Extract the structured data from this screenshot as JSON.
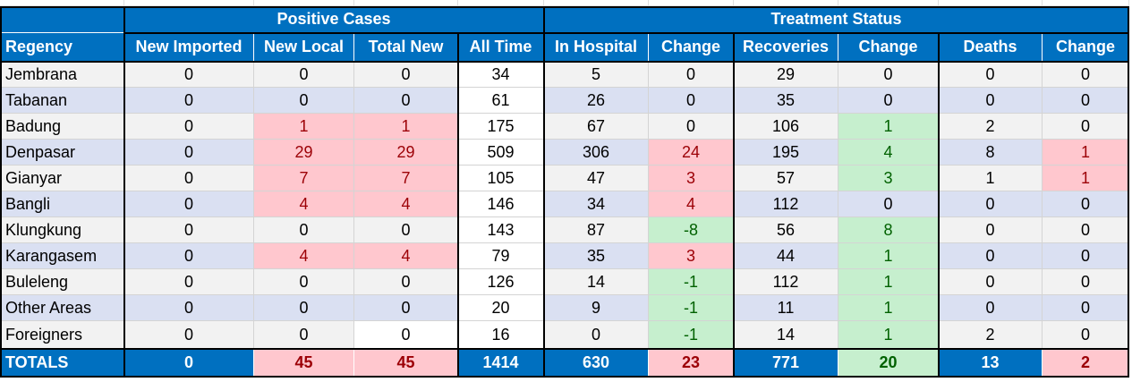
{
  "groups": {
    "positive": "Positive Cases",
    "treatment": "Treatment Status"
  },
  "columns": [
    "Regency",
    "New Imported",
    "New Local",
    "Total New",
    "All Time",
    "In Hospital",
    "Change",
    "Recoveries",
    "Change",
    "Deaths",
    "Change"
  ],
  "rows": [
    [
      "Jembrana",
      "0",
      "0",
      "0",
      "34",
      "5",
      "0",
      "29",
      "0",
      "0",
      "0"
    ],
    [
      "Tabanan",
      "0",
      "0",
      "0",
      "61",
      "26",
      "0",
      "35",
      "0",
      "0",
      "0"
    ],
    [
      "Badung",
      "0",
      "1",
      "1",
      "175",
      "67",
      "0",
      "106",
      "1",
      "2",
      "0"
    ],
    [
      "Denpasar",
      "0",
      "29",
      "29",
      "509",
      "306",
      "24",
      "195",
      "4",
      "8",
      "1"
    ],
    [
      "Gianyar",
      "0",
      "7",
      "7",
      "105",
      "47",
      "3",
      "57",
      "3",
      "1",
      "1"
    ],
    [
      "Bangli",
      "0",
      "4",
      "4",
      "146",
      "34",
      "4",
      "112",
      "0",
      "0",
      "0"
    ],
    [
      "Klungkung",
      "0",
      "0",
      "0",
      "143",
      "87",
      "-8",
      "56",
      "8",
      "0",
      "0"
    ],
    [
      "Karangasem",
      "0",
      "4",
      "4",
      "79",
      "35",
      "3",
      "44",
      "1",
      "0",
      "0"
    ],
    [
      "Buleleng",
      "0",
      "0",
      "0",
      "126",
      "14",
      "-1",
      "112",
      "1",
      "0",
      "0"
    ],
    [
      "Other Areas",
      "0",
      "0",
      "0",
      "20",
      "9",
      "-1",
      "11",
      "1",
      "0",
      "0"
    ],
    [
      "Foreigners",
      "0",
      "0",
      "0",
      "16",
      "0",
      "-1",
      "14",
      "1",
      "2",
      "0"
    ]
  ],
  "styles": [
    [
      "",
      "",
      "",
      "",
      "white",
      "",
      "",
      "",
      "",
      "",
      ""
    ],
    [
      "",
      "",
      "",
      "",
      "white",
      "",
      "",
      "",
      "",
      "",
      ""
    ],
    [
      "",
      "",
      "red",
      "red",
      "white",
      "",
      "",
      "",
      "green",
      "",
      ""
    ],
    [
      "",
      "",
      "red",
      "red",
      "white",
      "",
      "red",
      "",
      "green",
      "",
      "red"
    ],
    [
      "",
      "",
      "red",
      "red",
      "white",
      "",
      "red",
      "",
      "green",
      "",
      "red"
    ],
    [
      "",
      "",
      "red",
      "red",
      "white",
      "",
      "red",
      "",
      "",
      "",
      ""
    ],
    [
      "",
      "",
      "",
      "",
      "white",
      "",
      "green",
      "",
      "green",
      "",
      ""
    ],
    [
      "",
      "",
      "red",
      "red",
      "white",
      "",
      "red",
      "",
      "green",
      "",
      ""
    ],
    [
      "",
      "",
      "",
      "",
      "white",
      "",
      "green",
      "",
      "green",
      "",
      ""
    ],
    [
      "",
      "",
      "",
      "",
      "white",
      "",
      "green",
      "",
      "green",
      "",
      ""
    ],
    [
      "",
      "",
      "",
      "white",
      "white",
      "",
      "green",
      "",
      "green",
      "",
      ""
    ]
  ],
  "totals": [
    "TOTALS",
    "0",
    "45",
    "45",
    "1414",
    "630",
    "23",
    "771",
    "20",
    "13",
    "2"
  ],
  "totals_styles": [
    "",
    "",
    "red",
    "red",
    "",
    "",
    "red",
    "",
    "green",
    "",
    "red"
  ],
  "colors": {
    "header_blue": "#0070c0",
    "row_light": "#f2f2f2",
    "row_blue": "#dae0f2",
    "negative_fill": "#ffc7ce",
    "negative_text": "#9c0006",
    "positive_fill": "#c6efce",
    "positive_text": "#006100"
  }
}
